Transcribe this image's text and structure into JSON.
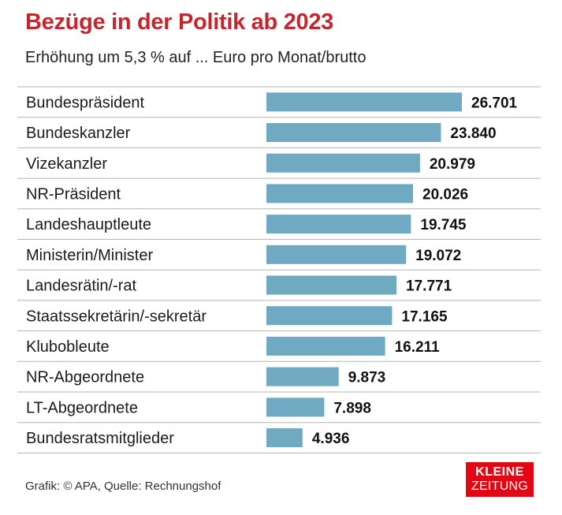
{
  "header": {
    "title": "Bezüge in der Politik ab 2023",
    "subtitle": "Erhöhung um 5,3 % auf ... Euro pro Monat/brutto"
  },
  "footer": {
    "source": "Grafik: © APA, Quelle: Rechnungshof",
    "logo_line1": "KLEINE",
    "logo_line2": "ZEITUNG"
  },
  "colors": {
    "bar": "#6fa9c2",
    "title": "#c8242c",
    "divider": "#b5b5b5",
    "logo": "#e30613"
  },
  "chart_data": {
    "type": "bar",
    "orientation": "horizontal",
    "title": "Bezüge in der Politik ab 2023",
    "subtitle": "Erhöhung um 5,3 % auf ... Euro pro Monat/brutto",
    "categories": [
      "Bundespräsident",
      "Bundeskanzler",
      "Vizekanzler",
      "NR-Präsident",
      "Landeshauptleute",
      "Ministerin/Minister",
      "Landesrätin/-rat",
      "Staatssekretärin/-sekretär",
      "Klubobleute",
      "NR-Abgeordnete",
      "LT-Abgeordnete",
      "Bundesratsmitglieder"
    ],
    "values": [
      26701,
      23840,
      20979,
      20026,
      19745,
      19072,
      17771,
      17165,
      16211,
      9873,
      7898,
      4936
    ],
    "value_labels": [
      "26.701",
      "23.840",
      "20.979",
      "20.026",
      "19.745",
      "19.072",
      "17.771",
      "17.165",
      "16.211",
      "9.873",
      "7.898",
      "4.936"
    ],
    "xlim": [
      0,
      26701
    ],
    "grid": false
  }
}
